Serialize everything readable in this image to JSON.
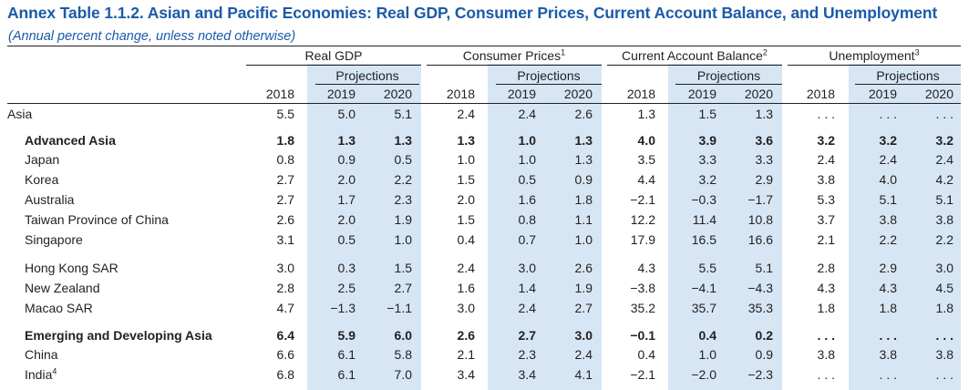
{
  "title": "Annex Table 1.1.2. Asian and Pacific Economies: Real GDP, Consumer Prices, Current Account Balance, and Unemployment",
  "subtitle": "(Annual percent change, unless noted otherwise)",
  "groups": [
    {
      "label": "Real GDP",
      "sup": ""
    },
    {
      "label": "Consumer Prices",
      "sup": "1"
    },
    {
      "label": "Current Account Balance",
      "sup": "2"
    },
    {
      "label": "Unemployment",
      "sup": "3"
    }
  ],
  "projections_label": "Projections",
  "years": [
    "2018",
    "2019",
    "2020"
  ],
  "rows": [
    {
      "label": "Asia",
      "sup": "",
      "bold": false,
      "indent": 0,
      "values": [
        "5.5",
        "5.0",
        "5.1",
        "2.4",
        "2.4",
        "2.6",
        "1.3",
        "1.5",
        "1.3",
        ". . .",
        ". . .",
        ". . ."
      ]
    },
    {
      "label": "Advanced Asia",
      "sup": "",
      "bold": true,
      "indent": 1,
      "values": [
        "1.8",
        "1.3",
        "1.3",
        "1.3",
        "1.0",
        "1.3",
        "4.0",
        "3.9",
        "3.6",
        "3.2",
        "3.2",
        "3.2"
      ]
    },
    {
      "label": "Japan",
      "sup": "",
      "bold": false,
      "indent": 1,
      "values": [
        "0.8",
        "0.9",
        "0.5",
        "1.0",
        "1.0",
        "1.3",
        "3.5",
        "3.3",
        "3.3",
        "2.4",
        "2.4",
        "2.4"
      ]
    },
    {
      "label": "Korea",
      "sup": "",
      "bold": false,
      "indent": 1,
      "values": [
        "2.7",
        "2.0",
        "2.2",
        "1.5",
        "0.5",
        "0.9",
        "4.4",
        "3.2",
        "2.9",
        "3.8",
        "4.0",
        "4.2"
      ]
    },
    {
      "label": "Australia",
      "sup": "",
      "bold": false,
      "indent": 1,
      "values": [
        "2.7",
        "1.7",
        "2.3",
        "2.0",
        "1.6",
        "1.8",
        "−2.1",
        "−0.3",
        "−1.7",
        "5.3",
        "5.1",
        "5.1"
      ]
    },
    {
      "label": "Taiwan Province of China",
      "sup": "",
      "bold": false,
      "indent": 1,
      "values": [
        "2.6",
        "2.0",
        "1.9",
        "1.5",
        "0.8",
        "1.1",
        "12.2",
        "11.4",
        "10.8",
        "3.7",
        "3.8",
        "3.8"
      ]
    },
    {
      "label": "Singapore",
      "sup": "",
      "bold": false,
      "indent": 1,
      "values": [
        "3.1",
        "0.5",
        "1.0",
        "0.4",
        "0.7",
        "1.0",
        "17.9",
        "16.5",
        "16.6",
        "2.1",
        "2.2",
        "2.2"
      ]
    },
    {
      "label": "Hong Kong SAR",
      "sup": "",
      "bold": false,
      "indent": 1,
      "values": [
        "3.0",
        "0.3",
        "1.5",
        "2.4",
        "3.0",
        "2.6",
        "4.3",
        "5.5",
        "5.1",
        "2.8",
        "2.9",
        "3.0"
      ]
    },
    {
      "label": "New Zealand",
      "sup": "",
      "bold": false,
      "indent": 1,
      "values": [
        "2.8",
        "2.5",
        "2.7",
        "1.6",
        "1.4",
        "1.9",
        "−3.8",
        "−4.1",
        "−4.3",
        "4.3",
        "4.3",
        "4.5"
      ]
    },
    {
      "label": "Macao SAR",
      "sup": "",
      "bold": false,
      "indent": 1,
      "values": [
        "4.7",
        "−1.3",
        "−1.1",
        "3.0",
        "2.4",
        "2.7",
        "35.2",
        "35.7",
        "35.3",
        "1.8",
        "1.8",
        "1.8"
      ]
    },
    {
      "label": "Emerging and Developing Asia",
      "sup": "",
      "bold": true,
      "indent": 1,
      "values": [
        "6.4",
        "5.9",
        "6.0",
        "2.6",
        "2.7",
        "3.0",
        "−0.1",
        "0.4",
        "0.2",
        ". . .",
        ". . .",
        ". . ."
      ]
    },
    {
      "label": "China",
      "sup": "",
      "bold": false,
      "indent": 1,
      "values": [
        "6.6",
        "6.1",
        "5.8",
        "2.1",
        "2.3",
        "2.4",
        "0.4",
        "1.0",
        "0.9",
        "3.8",
        "3.8",
        "3.8"
      ]
    },
    {
      "label": "India",
      "sup": "4",
      "bold": false,
      "indent": 1,
      "values": [
        "6.8",
        "6.1",
        "7.0",
        "3.4",
        "3.4",
        "4.1",
        "−2.1",
        "−2.0",
        "−2.3",
        ". . .",
        ". . .",
        ". . ."
      ]
    }
  ]
}
